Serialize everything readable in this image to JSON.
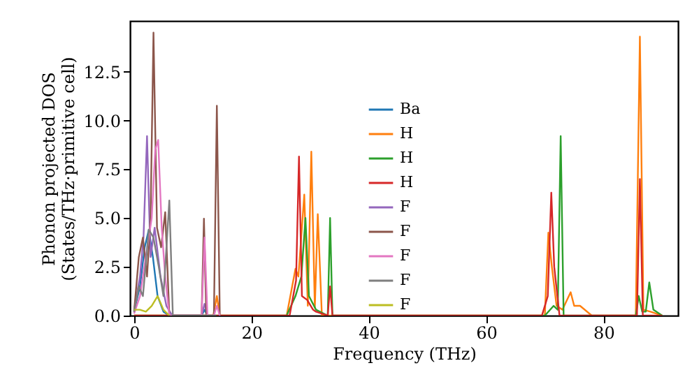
{
  "chart_data": {
    "type": "line",
    "xlabel": "Frequency (THz)",
    "ylabel": "Phonon projected DOS\n(States/THz·primitive cell)",
    "xlim": [
      -0.7,
      92.7
    ],
    "xticks": [
      0,
      20,
      40,
      60,
      80
    ],
    "ylim": [
      0,
      15.1
    ],
    "yticks": [
      {
        "value": 0,
        "label": "0.0"
      },
      {
        "value": 2.5,
        "label": "2.5"
      },
      {
        "value": 5,
        "label": "5.0"
      },
      {
        "value": 7.5,
        "label": "7.5"
      },
      {
        "value": 10,
        "label": "10.0"
      },
      {
        "value": 12.5,
        "label": "12.5"
      }
    ],
    "grid": false,
    "legend": "center",
    "line_style": "solid",
    "marker": "none",
    "series": [
      {
        "name": "Ba",
        "color": "#1f77b4",
        "x": [
          0,
          1,
          1.8,
          2.5,
          3.2,
          4,
          5,
          6,
          11.5,
          12,
          12.5
        ],
        "values": [
          0.2,
          1.5,
          3.5,
          4.4,
          3.0,
          1.0,
          0.2,
          0,
          0,
          0.3,
          0
        ]
      },
      {
        "name": "H",
        "color": "#ff7f0e",
        "x": [
          0,
          13.5,
          14.1,
          14.6,
          26,
          27.5,
          28,
          29,
          29.6,
          30.2,
          30.8,
          31.3,
          32,
          70,
          70.6,
          71.2,
          72,
          73,
          74.4,
          75,
          76,
          78,
          85.5,
          86.2,
          86.8,
          88,
          90
        ],
        "values": [
          0,
          0,
          1.0,
          0,
          0,
          2.4,
          2.0,
          6.2,
          0.5,
          8.4,
          0.4,
          5.2,
          0,
          0,
          4.25,
          2.5,
          0.5,
          0.3,
          1.2,
          0.5,
          0.5,
          0,
          0,
          14.3,
          0.3,
          0.2,
          0
        ]
      },
      {
        "name": "H",
        "color": "#2ca02c",
        "x": [
          0,
          26,
          27.5,
          28.5,
          29.2,
          29.8,
          31,
          33,
          33.4,
          33.8,
          70,
          71.5,
          72.2,
          72.7,
          73.2,
          85.5,
          86,
          86.6,
          87.2,
          87.8,
          88.5,
          90
        ],
        "values": [
          0,
          0,
          1.0,
          2.0,
          5.0,
          1.0,
          0.3,
          0,
          5.0,
          0,
          0,
          0.5,
          0.3,
          9.2,
          0,
          0,
          1.0,
          0.2,
          0.2,
          1.7,
          0.3,
          0
        ]
      },
      {
        "name": "H",
        "color": "#d62728",
        "x": [
          0,
          26.5,
          27.6,
          28.1,
          28.6,
          29.5,
          30.5,
          31,
          33,
          33.4,
          33.8,
          69.5,
          70.5,
          71.1,
          71.6,
          72.5,
          85.7,
          86.2,
          86.7,
          90
        ],
        "values": [
          0,
          0,
          1.8,
          8.15,
          1.0,
          0.8,
          0.3,
          0.2,
          0,
          1.5,
          0,
          0,
          1.0,
          6.3,
          2.5,
          0,
          0,
          7.0,
          0,
          0
        ]
      },
      {
        "name": "F",
        "color": "#9467bd",
        "x": [
          0,
          1,
          1.6,
          2.2,
          2.8,
          3.5,
          4.5,
          5.5,
          6.5,
          11.5,
          12,
          12.5
        ],
        "values": [
          0.3,
          2.0,
          4.0,
          9.2,
          3.0,
          4.5,
          2.0,
          0.5,
          0,
          0,
          0.6,
          0
        ]
      },
      {
        "name": "F",
        "color": "#8c564b",
        "x": [
          0,
          0.8,
          1.5,
          2.2,
          2.8,
          3.3,
          3.9,
          4.6,
          5.3,
          6,
          11.5,
          11.9,
          12.3,
          13.6,
          14.1,
          14.6
        ],
        "values": [
          0.2,
          3.0,
          4.0,
          2.0,
          5.0,
          14.5,
          4.5,
          3.5,
          5.3,
          0,
          0,
          4.97,
          0,
          0,
          10.75,
          0
        ]
      },
      {
        "name": "F",
        "color": "#e377c2",
        "x": [
          0,
          1,
          2,
          3,
          3.6,
          4.1,
          4.7,
          5.3,
          6,
          11.5,
          12,
          12.5,
          13.6,
          14.1,
          14.6
        ],
        "values": [
          0.1,
          1.0,
          3.0,
          5.0,
          8.5,
          9.0,
          4.5,
          2.0,
          0,
          0,
          4.0,
          0,
          0,
          0.5,
          0
        ]
      },
      {
        "name": "F",
        "color": "#7f7f7f",
        "x": [
          0,
          0.8,
          1.5,
          2.5,
          3.3,
          4.2,
          5,
          6.0,
          6.6,
          12,
          14
        ],
        "values": [
          0.2,
          1.5,
          1.0,
          4.4,
          4.0,
          2.5,
          1.0,
          5.9,
          0,
          0,
          0
        ]
      },
      {
        "name": "F",
        "color": "#bcbd22",
        "x": [
          0,
          1,
          2,
          3,
          4,
          5,
          6
        ],
        "values": [
          0.3,
          0.3,
          0.2,
          0.5,
          1.0,
          0.3,
          0
        ]
      }
    ]
  }
}
